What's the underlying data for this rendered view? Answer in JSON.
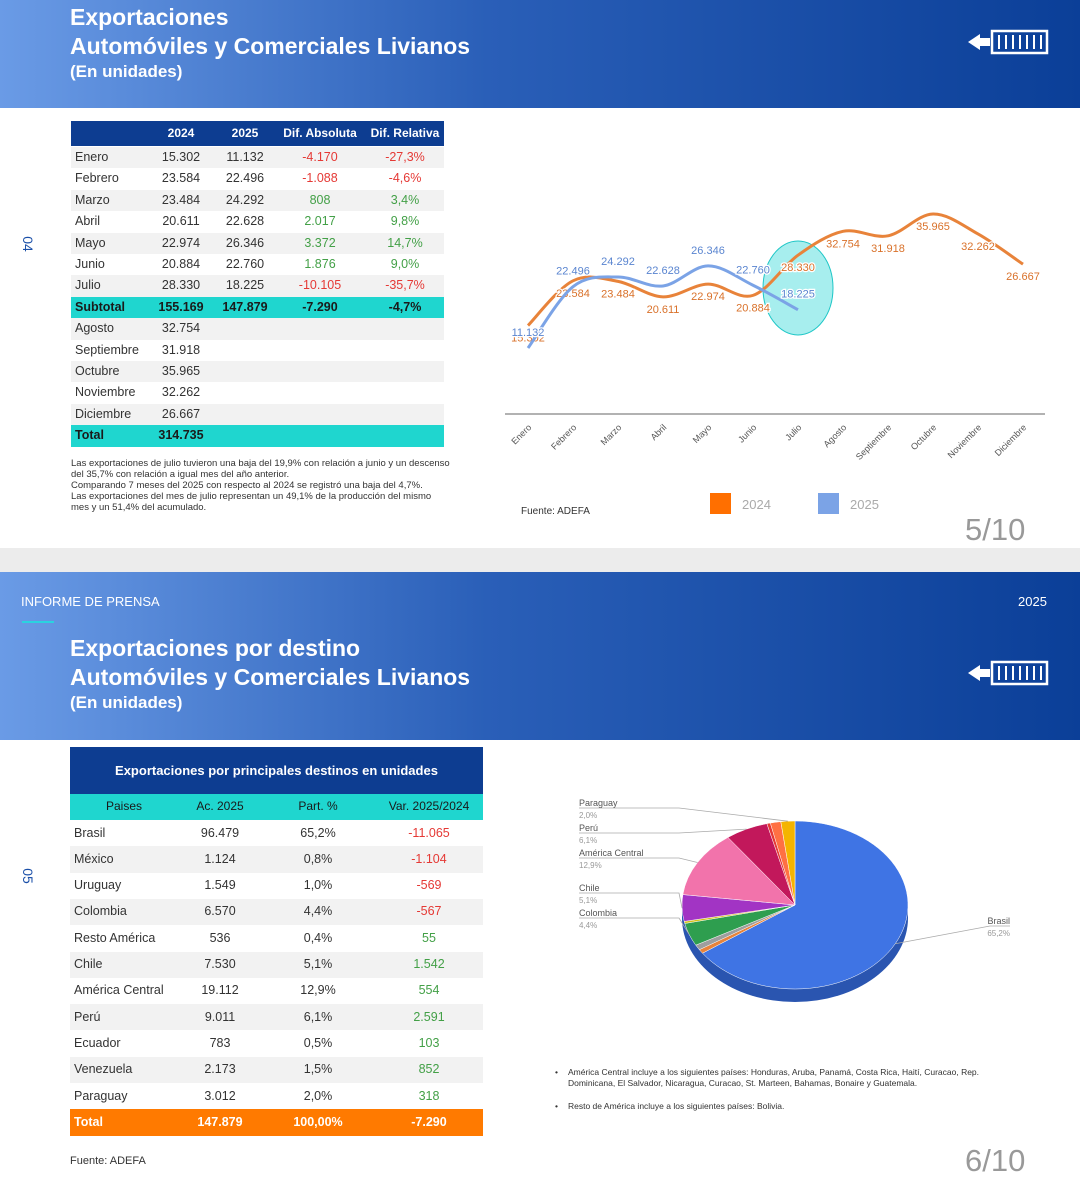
{
  "slides": [
    {
      "title": [
        "Exportaciones",
        "Automóviles y Comerciales Livianos"
      ],
      "subtitle": "(En unidades)",
      "side_label": "04",
      "table": {
        "header": [
          "2024",
          "2025",
          "Dif. Absoluta",
          "Dif. Relativa"
        ],
        "rows": [
          [
            "Enero",
            "15.302",
            "11.132",
            "-4.170",
            "-27,3%"
          ],
          [
            "Febrero",
            "23.584",
            "22.496",
            "-1.088",
            "-4,6%"
          ],
          [
            "Marzo",
            "23.484",
            "24.292",
            "808",
            "3,4%"
          ],
          [
            "Abril",
            "20.611",
            "22.628",
            "2.017",
            "9,8%"
          ],
          [
            "Mayo",
            "22.974",
            "26.346",
            "3.372",
            "14,7%"
          ],
          [
            "Junio",
            "20.884",
            "22.760",
            "1.876",
            "9,0%"
          ],
          [
            "Julio",
            "28.330",
            "18.225",
            "-10.105",
            "-35,7%"
          ],
          [
            "Agosto",
            "32.754"
          ],
          [
            "Septiembre",
            "31.918"
          ],
          [
            "Octubre",
            "35.965"
          ],
          [
            "Noviembre",
            "32.262"
          ],
          [
            "Diciembre",
            "26.667"
          ]
        ],
        "subtotal": [
          "Subtotal",
          "155.169",
          "147.879",
          "-7.290",
          "-4,7%"
        ],
        "total": [
          "Total",
          "314.735"
        ]
      },
      "notes": [
        "Las exportaciones de julio tuvieron una baja del 19,9% con relación a junio y un descenso del 35,7% con relación a igual mes del año anterior.",
        "Comparando 7 meses del 2025 con respecto al 2024 se registró una baja del 4,7%.",
        "Las exportaciones del mes de julio representan un 49,1% de la producción del mismo mes y un 51,4% del acumulado."
      ],
      "chart": {
        "type": "line",
        "categories": [
          "Enero",
          "Febrero",
          "Marzo",
          "Abril",
          "Mayo",
          "Junio",
          "Julio",
          "Agosto",
          "Septiembre",
          "Octubre",
          "Noviembre",
          "Diciembre"
        ],
        "series": [
          {
            "name": "2024",
            "color": "#e8833a",
            "values": [
              15302,
              23584,
              23484,
              20611,
              22974,
              20884,
              28330,
              32754,
              31918,
              35965,
              32262,
              26667
            ],
            "value_labels": [
              "15.302",
              "23.584",
              "23.484",
              "20.611",
              "22.974",
              "20.884",
              "28.330",
              "32.754",
              "31.918",
              "35.965",
              "32.262",
              "26.667"
            ]
          },
          {
            "name": "2025",
            "color": "#7ba3e6",
            "values": [
              11132,
              22496,
              24292,
              22628,
              26346,
              22760,
              18225,
              null,
              null,
              null,
              null,
              null
            ],
            "value_labels": [
              "11.132",
              "22.496",
              "24.292",
              "22.628",
              "26.346",
              "22.760",
              "18.225",
              null,
              null,
              null,
              null,
              null
            ]
          }
        ]
      },
      "source": "Fuente: ADEFA",
      "page": "5/10"
    },
    {
      "header_left": "INFORME DE PRENSA",
      "header_right": "2025",
      "title": [
        "Exportaciones por destino",
        "Automóviles y Comerciales Livianos"
      ],
      "subtitle": "(En unidades)",
      "side_label": "05",
      "table": {
        "title": "Exportaciones por principales destinos en unidades",
        "header": [
          "Paises",
          "Ac. 2025",
          "Part. %",
          "Var. 2025/2024"
        ],
        "rows": [
          [
            "Brasil",
            "96.479",
            "65,2%",
            "-11.065"
          ],
          [
            "México",
            "1.124",
            "0,8%",
            "-1.104"
          ],
          [
            "Uruguay",
            "1.549",
            "1,0%",
            "-569"
          ],
          [
            "Colombia",
            "6.570",
            "4,4%",
            "-567"
          ],
          [
            "Resto América",
            "536",
            "0,4%",
            "55"
          ],
          [
            "Chile",
            "7.530",
            "5,1%",
            "1.542"
          ],
          [
            "América Central",
            "19.112",
            "12,9%",
            "554"
          ],
          [
            "Perú",
            "9.011",
            "6,1%",
            "2.591"
          ],
          [
            "Ecuador",
            "783",
            "0,5%",
            "103"
          ],
          [
            "Venezuela",
            "2.173",
            "1,5%",
            "852"
          ],
          [
            "Paraguay",
            "3.012",
            "2,0%",
            "318"
          ]
        ],
        "total": [
          "Total",
          "147.879",
          "100,00%",
          "-7.290"
        ]
      },
      "chart": {
        "type": "pie",
        "categories": [
          "Brasil",
          null,
          null,
          "Colombia",
          null,
          "Chile",
          "América Central",
          "Perú",
          null,
          null,
          "Paraguay"
        ],
        "values": [
          65.2,
          0.8,
          1.0,
          4.4,
          0.4,
          5.1,
          12.9,
          6.1,
          0.5,
          1.5,
          2.0
        ],
        "value_labels": [
          "65,2%",
          null,
          null,
          "4,4%",
          null,
          "5,1%",
          "12,9%",
          "6,1%",
          null,
          null,
          "2,0%"
        ],
        "colors": [
          "#3f74e4",
          "#e8833a",
          "#9e9e9e",
          "#2e9e4f",
          "#d4c21a",
          "#a234c4",
          "#f273ab",
          "#c2185b",
          "#e53935",
          "#ff7043",
          "#f4b400"
        ]
      },
      "notes": [
        "América Central incluye a los siguientes países: Honduras, Aruba, Panamá,  Costa Rica, Haití, Curacao, Rep. Dominicana, El Salvador, Nicaragua, Curacao, St. Marteen, Bahamas, Bonaire y Guatemala.",
        "Resto de América incluye a los siguientes países: Bolivia."
      ],
      "source": "Fuente: ADEFA",
      "page": "6/10"
    }
  ]
}
